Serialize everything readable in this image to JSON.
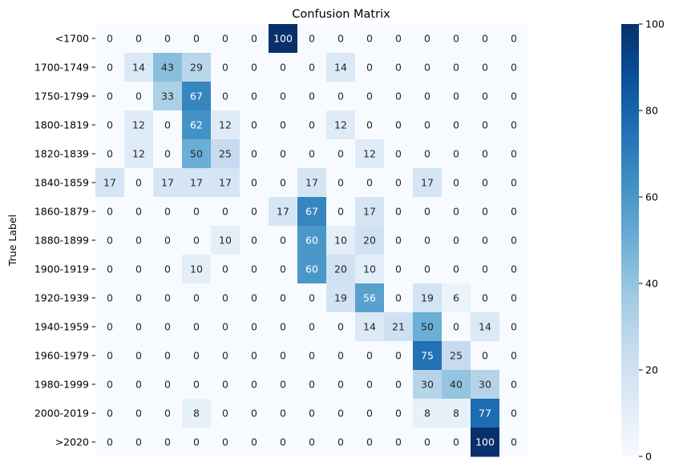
{
  "chart_data": {
    "type": "heatmap",
    "title": "Confusion Matrix",
    "ylabel": "True Label",
    "xlabel": "",
    "rows": [
      "<1700",
      "1700-1749",
      "1750-1799",
      "1800-1819",
      "1820-1839",
      "1840-1859",
      "1860-1879",
      "1880-1899",
      "1900-1919",
      "1920-1939",
      "1940-1959",
      "1960-1979",
      "1980-1999",
      "2000-2019",
      ">2020"
    ],
    "values": [
      [
        0,
        0,
        0,
        0,
        0,
        0,
        100,
        0,
        0,
        0,
        0,
        0,
        0,
        0,
        0
      ],
      [
        0,
        14,
        43,
        29,
        0,
        0,
        0,
        0,
        14,
        0,
        0,
        0,
        0,
        0,
        0
      ],
      [
        0,
        0,
        33,
        67,
        0,
        0,
        0,
        0,
        0,
        0,
        0,
        0,
        0,
        0,
        0
      ],
      [
        0,
        12,
        0,
        62,
        12,
        0,
        0,
        0,
        12,
        0,
        0,
        0,
        0,
        0,
        0
      ],
      [
        0,
        12,
        0,
        50,
        25,
        0,
        0,
        0,
        0,
        12,
        0,
        0,
        0,
        0,
        0
      ],
      [
        17,
        0,
        17,
        17,
        17,
        0,
        0,
        17,
        0,
        0,
        0,
        17,
        0,
        0,
        0
      ],
      [
        0,
        0,
        0,
        0,
        0,
        0,
        17,
        67,
        0,
        17,
        0,
        0,
        0,
        0,
        0
      ],
      [
        0,
        0,
        0,
        0,
        10,
        0,
        0,
        60,
        10,
        20,
        0,
        0,
        0,
        0,
        0
      ],
      [
        0,
        0,
        0,
        10,
        0,
        0,
        0,
        60,
        20,
        10,
        0,
        0,
        0,
        0,
        0
      ],
      [
        0,
        0,
        0,
        0,
        0,
        0,
        0,
        0,
        19,
        56,
        0,
        19,
        6,
        0,
        0
      ],
      [
        0,
        0,
        0,
        0,
        0,
        0,
        0,
        0,
        0,
        14,
        21,
        50,
        0,
        14,
        0
      ],
      [
        0,
        0,
        0,
        0,
        0,
        0,
        0,
        0,
        0,
        0,
        0,
        75,
        25,
        0,
        0
      ],
      [
        0,
        0,
        0,
        0,
        0,
        0,
        0,
        0,
        0,
        0,
        0,
        30,
        40,
        30,
        0
      ],
      [
        0,
        0,
        0,
        8,
        0,
        0,
        0,
        0,
        0,
        0,
        0,
        8,
        8,
        77,
        0
      ],
      [
        0,
        0,
        0,
        0,
        0,
        0,
        0,
        0,
        0,
        0,
        0,
        0,
        0,
        100,
        0
      ]
    ],
    "vmin": 0,
    "vmax": 100,
    "colorbar_ticks": [
      0,
      20,
      40,
      60,
      80,
      100
    ],
    "colormap": "Blues",
    "colormap_low": "#f7fbff",
    "colormap_high": "#08306b",
    "annotation_light": "#ffffff",
    "annotation_dark": "#262626"
  }
}
